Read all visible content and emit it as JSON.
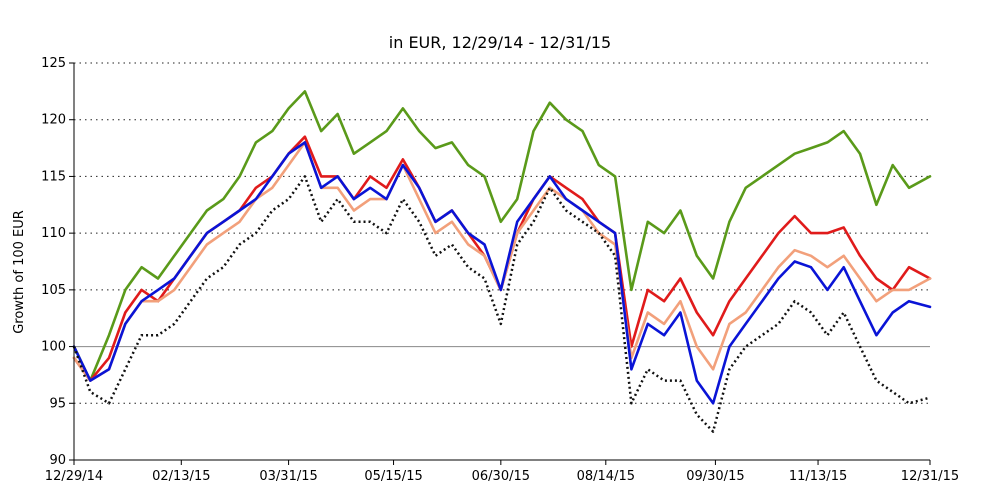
{
  "chart_data": {
    "type": "line",
    "title": "in EUR, 12/29/14 - 12/31/15",
    "ylabel": "Growth of 100 EUR",
    "xlabel": "",
    "ylim": [
      90,
      125
    ],
    "yticks": [
      90,
      95,
      100,
      105,
      110,
      115,
      120,
      125
    ],
    "xlim": [
      "2014-12-29",
      "2015-12-31"
    ],
    "xticks": [
      {
        "date": "2014-12-29",
        "label": "12/29/14"
      },
      {
        "date": "2015-02-13",
        "label": "02/13/15"
      },
      {
        "date": "2015-03-31",
        "label": "03/31/15"
      },
      {
        "date": "2015-05-15",
        "label": "05/15/15"
      },
      {
        "date": "2015-06-30",
        "label": "06/30/15"
      },
      {
        "date": "2015-08-14",
        "label": "08/14/15"
      },
      {
        "date": "2015-09-30",
        "label": "09/30/15"
      },
      {
        "date": "2015-11-13",
        "label": "11/13/15"
      },
      {
        "date": "2015-12-31",
        "label": "12/31/15"
      }
    ],
    "grid": "horizontal dotted",
    "reference_line": 100,
    "legend": "none",
    "series": [
      {
        "color": "#5a9a1a",
        "style": "solid",
        "points": [
          [
            "2014-12-29",
            100
          ],
          [
            "2015-01-05",
            97
          ],
          [
            "2015-01-13",
            101
          ],
          [
            "2015-01-20",
            105
          ],
          [
            "2015-01-27",
            107
          ],
          [
            "2015-02-03",
            106
          ],
          [
            "2015-02-10",
            108
          ],
          [
            "2015-02-17",
            110
          ],
          [
            "2015-02-24",
            112
          ],
          [
            "2015-03-03",
            113
          ],
          [
            "2015-03-10",
            115
          ],
          [
            "2015-03-17",
            118
          ],
          [
            "2015-03-24",
            119
          ],
          [
            "2015-03-31",
            121
          ],
          [
            "2015-04-07",
            122.5
          ],
          [
            "2015-04-14",
            119
          ],
          [
            "2015-04-21",
            120.5
          ],
          [
            "2015-04-28",
            117
          ],
          [
            "2015-05-05",
            118
          ],
          [
            "2015-05-12",
            119
          ],
          [
            "2015-05-19",
            121
          ],
          [
            "2015-05-26",
            119
          ],
          [
            "2015-06-02",
            117.5
          ],
          [
            "2015-06-09",
            118
          ],
          [
            "2015-06-16",
            116
          ],
          [
            "2015-06-23",
            115
          ],
          [
            "2015-06-30",
            111
          ],
          [
            "2015-07-07",
            113
          ],
          [
            "2015-07-14",
            119
          ],
          [
            "2015-07-21",
            121.5
          ],
          [
            "2015-07-28",
            120
          ],
          [
            "2015-08-04",
            119
          ],
          [
            "2015-08-11",
            116
          ],
          [
            "2015-08-18",
            115
          ],
          [
            "2015-08-25",
            105
          ],
          [
            "2015-09-01",
            111
          ],
          [
            "2015-09-08",
            110
          ],
          [
            "2015-09-15",
            112
          ],
          [
            "2015-09-22",
            108
          ],
          [
            "2015-09-29",
            106
          ],
          [
            "2015-10-06",
            111
          ],
          [
            "2015-10-13",
            114
          ],
          [
            "2015-10-20",
            115
          ],
          [
            "2015-10-27",
            116
          ],
          [
            "2015-11-03",
            117
          ],
          [
            "2015-11-10",
            117.5
          ],
          [
            "2015-11-17",
            118
          ],
          [
            "2015-11-24",
            119
          ],
          [
            "2015-12-01",
            117
          ],
          [
            "2015-12-08",
            112.5
          ],
          [
            "2015-12-15",
            116
          ],
          [
            "2015-12-22",
            114
          ],
          [
            "2015-12-31",
            115
          ]
        ]
      },
      {
        "color": "#e01b1b",
        "style": "solid",
        "points": [
          [
            "2014-12-29",
            99
          ],
          [
            "2015-01-05",
            97
          ],
          [
            "2015-01-13",
            99
          ],
          [
            "2015-01-20",
            103
          ],
          [
            "2015-01-27",
            105
          ],
          [
            "2015-02-03",
            104
          ],
          [
            "2015-02-10",
            106
          ],
          [
            "2015-02-17",
            108
          ],
          [
            "2015-02-24",
            110
          ],
          [
            "2015-03-03",
            111
          ],
          [
            "2015-03-10",
            112
          ],
          [
            "2015-03-17",
            114
          ],
          [
            "2015-03-24",
            115
          ],
          [
            "2015-03-31",
            117
          ],
          [
            "2015-04-07",
            118.5
          ],
          [
            "2015-04-14",
            115
          ],
          [
            "2015-04-21",
            115
          ],
          [
            "2015-04-28",
            113
          ],
          [
            "2015-05-05",
            115
          ],
          [
            "2015-05-12",
            114
          ],
          [
            "2015-05-19",
            116.5
          ],
          [
            "2015-05-26",
            114
          ],
          [
            "2015-06-02",
            111
          ],
          [
            "2015-06-09",
            112
          ],
          [
            "2015-06-16",
            110
          ],
          [
            "2015-06-23",
            108
          ],
          [
            "2015-06-30",
            105
          ],
          [
            "2015-07-07",
            110
          ],
          [
            "2015-07-14",
            113
          ],
          [
            "2015-07-21",
            115
          ],
          [
            "2015-07-28",
            114
          ],
          [
            "2015-08-04",
            113
          ],
          [
            "2015-08-11",
            111
          ],
          [
            "2015-08-18",
            110
          ],
          [
            "2015-08-25",
            100
          ],
          [
            "2015-09-01",
            105
          ],
          [
            "2015-09-08",
            104
          ],
          [
            "2015-09-15",
            106
          ],
          [
            "2015-09-22",
            103
          ],
          [
            "2015-09-29",
            101
          ],
          [
            "2015-10-06",
            104
          ],
          [
            "2015-10-13",
            106
          ],
          [
            "2015-10-20",
            108
          ],
          [
            "2015-10-27",
            110
          ],
          [
            "2015-11-03",
            111.5
          ],
          [
            "2015-11-10",
            110
          ],
          [
            "2015-11-17",
            110
          ],
          [
            "2015-11-24",
            110.5
          ],
          [
            "2015-12-01",
            108
          ],
          [
            "2015-12-08",
            106
          ],
          [
            "2015-12-15",
            105
          ],
          [
            "2015-12-22",
            107
          ],
          [
            "2015-12-31",
            106
          ]
        ]
      },
      {
        "color": "#f2a07b",
        "style": "solid",
        "points": [
          [
            "2014-12-29",
            99
          ],
          [
            "2015-01-05",
            97
          ],
          [
            "2015-01-13",
            98
          ],
          [
            "2015-01-20",
            102
          ],
          [
            "2015-01-27",
            104
          ],
          [
            "2015-02-03",
            104
          ],
          [
            "2015-02-10",
            105
          ],
          [
            "2015-02-17",
            107
          ],
          [
            "2015-02-24",
            109
          ],
          [
            "2015-03-03",
            110
          ],
          [
            "2015-03-10",
            111
          ],
          [
            "2015-03-17",
            113
          ],
          [
            "2015-03-24",
            114
          ],
          [
            "2015-03-31",
            116
          ],
          [
            "2015-04-07",
            118
          ],
          [
            "2015-04-14",
            114
          ],
          [
            "2015-04-21",
            114
          ],
          [
            "2015-04-28",
            112
          ],
          [
            "2015-05-05",
            113
          ],
          [
            "2015-05-12",
            113
          ],
          [
            "2015-05-19",
            116
          ],
          [
            "2015-05-26",
            113
          ],
          [
            "2015-06-02",
            110
          ],
          [
            "2015-06-09",
            111
          ],
          [
            "2015-06-16",
            109
          ],
          [
            "2015-06-23",
            108
          ],
          [
            "2015-06-30",
            105
          ],
          [
            "2015-07-07",
            110
          ],
          [
            "2015-07-14",
            112
          ],
          [
            "2015-07-21",
            114
          ],
          [
            "2015-07-28",
            113
          ],
          [
            "2015-08-04",
            112
          ],
          [
            "2015-08-11",
            110
          ],
          [
            "2015-08-18",
            109
          ],
          [
            "2015-08-25",
            99
          ],
          [
            "2015-09-01",
            103
          ],
          [
            "2015-09-08",
            102
          ],
          [
            "2015-09-15",
            104
          ],
          [
            "2015-09-22",
            100
          ],
          [
            "2015-09-29",
            98
          ],
          [
            "2015-10-06",
            102
          ],
          [
            "2015-10-13",
            103
          ],
          [
            "2015-10-20",
            105
          ],
          [
            "2015-10-27",
            107
          ],
          [
            "2015-11-03",
            108.5
          ],
          [
            "2015-11-10",
            108
          ],
          [
            "2015-11-17",
            107
          ],
          [
            "2015-11-24",
            108
          ],
          [
            "2015-12-01",
            106
          ],
          [
            "2015-12-08",
            104
          ],
          [
            "2015-12-15",
            105
          ],
          [
            "2015-12-22",
            105
          ],
          [
            "2015-12-31",
            106
          ]
        ]
      },
      {
        "color": "#0a14d6",
        "style": "solid",
        "points": [
          [
            "2014-12-29",
            100
          ],
          [
            "2015-01-05",
            97
          ],
          [
            "2015-01-13",
            98
          ],
          [
            "2015-01-20",
            102
          ],
          [
            "2015-01-27",
            104
          ],
          [
            "2015-02-03",
            105
          ],
          [
            "2015-02-10",
            106
          ],
          [
            "2015-02-17",
            108
          ],
          [
            "2015-02-24",
            110
          ],
          [
            "2015-03-03",
            111
          ],
          [
            "2015-03-10",
            112
          ],
          [
            "2015-03-17",
            113
          ],
          [
            "2015-03-24",
            115
          ],
          [
            "2015-03-31",
            117
          ],
          [
            "2015-04-07",
            118
          ],
          [
            "2015-04-14",
            114
          ],
          [
            "2015-04-21",
            115
          ],
          [
            "2015-04-28",
            113
          ],
          [
            "2015-05-05",
            114
          ],
          [
            "2015-05-12",
            113
          ],
          [
            "2015-05-19",
            116
          ],
          [
            "2015-05-26",
            114
          ],
          [
            "2015-06-02",
            111
          ],
          [
            "2015-06-09",
            112
          ],
          [
            "2015-06-16",
            110
          ],
          [
            "2015-06-23",
            109
          ],
          [
            "2015-06-30",
            105
          ],
          [
            "2015-07-07",
            111
          ],
          [
            "2015-07-14",
            113
          ],
          [
            "2015-07-21",
            115
          ],
          [
            "2015-07-28",
            113
          ],
          [
            "2015-08-04",
            112
          ],
          [
            "2015-08-11",
            111
          ],
          [
            "2015-08-18",
            110
          ],
          [
            "2015-08-25",
            98
          ],
          [
            "2015-09-01",
            102
          ],
          [
            "2015-09-08",
            101
          ],
          [
            "2015-09-15",
            103
          ],
          [
            "2015-09-22",
            97
          ],
          [
            "2015-09-29",
            95
          ],
          [
            "2015-10-06",
            100
          ],
          [
            "2015-10-13",
            102
          ],
          [
            "2015-10-20",
            104
          ],
          [
            "2015-10-27",
            106
          ],
          [
            "2015-11-03",
            107.5
          ],
          [
            "2015-11-10",
            107
          ],
          [
            "2015-11-17",
            105
          ],
          [
            "2015-11-24",
            107
          ],
          [
            "2015-12-01",
            104
          ],
          [
            "2015-12-08",
            101
          ],
          [
            "2015-12-15",
            103
          ],
          [
            "2015-12-22",
            104
          ],
          [
            "2015-12-31",
            103.5
          ]
        ]
      },
      {
        "color": "#111111",
        "style": "dotted",
        "points": [
          [
            "2014-12-29",
            100
          ],
          [
            "2015-01-05",
            96
          ],
          [
            "2015-01-13",
            95
          ],
          [
            "2015-01-20",
            98
          ],
          [
            "2015-01-27",
            101
          ],
          [
            "2015-02-03",
            101
          ],
          [
            "2015-02-10",
            102
          ],
          [
            "2015-02-17",
            104
          ],
          [
            "2015-02-24",
            106
          ],
          [
            "2015-03-03",
            107
          ],
          [
            "2015-03-10",
            109
          ],
          [
            "2015-03-17",
            110
          ],
          [
            "2015-03-24",
            112
          ],
          [
            "2015-03-31",
            113
          ],
          [
            "2015-04-07",
            115
          ],
          [
            "2015-04-14",
            111
          ],
          [
            "2015-04-21",
            113
          ],
          [
            "2015-04-28",
            111
          ],
          [
            "2015-05-05",
            111
          ],
          [
            "2015-05-12",
            110
          ],
          [
            "2015-05-19",
            113
          ],
          [
            "2015-05-26",
            111
          ],
          [
            "2015-06-02",
            108
          ],
          [
            "2015-06-09",
            109
          ],
          [
            "2015-06-16",
            107
          ],
          [
            "2015-06-23",
            106
          ],
          [
            "2015-06-30",
            102
          ],
          [
            "2015-07-07",
            109
          ],
          [
            "2015-07-14",
            111
          ],
          [
            "2015-07-21",
            114
          ],
          [
            "2015-07-28",
            112
          ],
          [
            "2015-08-04",
            111
          ],
          [
            "2015-08-11",
            110
          ],
          [
            "2015-08-18",
            108
          ],
          [
            "2015-08-25",
            95
          ],
          [
            "2015-09-01",
            98
          ],
          [
            "2015-09-08",
            97
          ],
          [
            "2015-09-15",
            97
          ],
          [
            "2015-09-22",
            94
          ],
          [
            "2015-09-29",
            92.5
          ],
          [
            "2015-10-06",
            98
          ],
          [
            "2015-10-13",
            100
          ],
          [
            "2015-10-20",
            101
          ],
          [
            "2015-10-27",
            102
          ],
          [
            "2015-11-03",
            104
          ],
          [
            "2015-11-10",
            103
          ],
          [
            "2015-11-17",
            101
          ],
          [
            "2015-11-24",
            103
          ],
          [
            "2015-12-01",
            100
          ],
          [
            "2015-12-08",
            97
          ],
          [
            "2015-12-15",
            96
          ],
          [
            "2015-12-22",
            95
          ],
          [
            "2015-12-31",
            95.5
          ]
        ]
      }
    ]
  }
}
